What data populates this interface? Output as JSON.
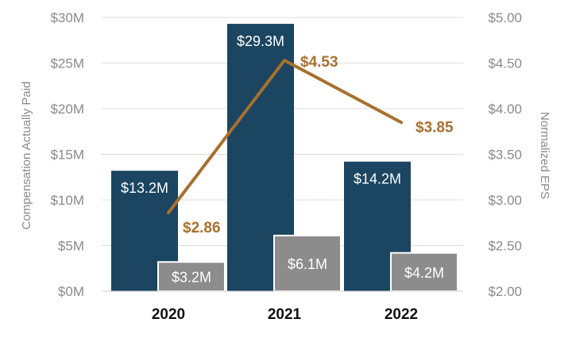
{
  "chart_data": {
    "type": "bar",
    "title": "",
    "categories": [
      "2020",
      "2021",
      "2022"
    ],
    "ylabel": "Compensation Actually Paid",
    "y2label": "Normalized EPS",
    "ylim": [
      0,
      30
    ],
    "y2lim": [
      2.0,
      5.0
    ],
    "y_ticks": [
      "$0M",
      "$5M",
      "$10M",
      "$15M",
      "$20M",
      "$25M",
      "$30M"
    ],
    "y2_ticks": [
      "$2.00",
      "$2.50",
      "$3.00",
      "$3.50",
      "$4.00",
      "$4.50",
      "$5.00"
    ],
    "series": [
      {
        "name": "Compensation Actually Paid (primary)",
        "kind": "bar",
        "color": "#1b4560",
        "values": [
          13.2,
          29.3,
          14.2
        ],
        "labels": [
          "$13.2M",
          "$29.3M",
          "$14.2M"
        ]
      },
      {
        "name": "Compensation Actually Paid (secondary)",
        "kind": "bar",
        "color": "#8c8c8c",
        "values": [
          3.2,
          6.1,
          4.2
        ],
        "labels": [
          "$3.2M",
          "$6.1M",
          "$4.2M"
        ]
      },
      {
        "name": "Normalized EPS",
        "kind": "line",
        "axis": "right",
        "color": "#a8702e",
        "values": [
          2.86,
          4.53,
          3.85
        ],
        "labels": [
          "$2.86",
          "$4.53",
          "$3.85"
        ]
      }
    ]
  }
}
